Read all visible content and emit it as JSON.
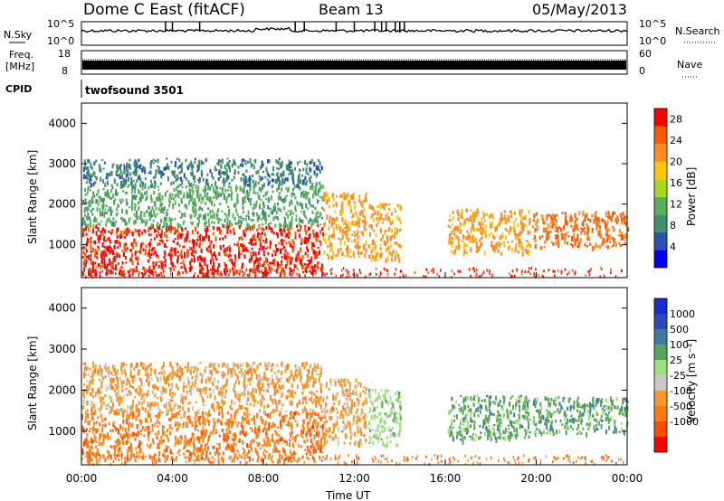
{
  "header": {
    "station": "Dome C East (fitACF)",
    "beam": "Beam 13",
    "date": "05/May/2013"
  },
  "nsky_panel": {
    "left_label": "N.Sky",
    "left_ticks": [
      "10^5",
      "10^0"
    ],
    "right_label": "N.Search",
    "right_ticks": [
      "10^5",
      "10^0"
    ]
  },
  "freq_panel": {
    "left_label_line1": "Freq.",
    "left_label_line2": "[MHz]",
    "left_ticks": [
      "18",
      "8"
    ],
    "right_label": "Nave",
    "right_ticks": [
      "60",
      "0"
    ]
  },
  "cpid": {
    "label": "CPID",
    "value": "twofsound 3501"
  },
  "time_axis": {
    "ticks": [
      "00:00",
      "04:00",
      "08:00",
      "12:00",
      "16:00",
      "20:00",
      "00:00"
    ],
    "label": "Time UT"
  },
  "colors": {
    "power_scale": [
      "#0000ff",
      "#2a50b4",
      "#3f8f6a",
      "#5ab05a",
      "#a8d81e",
      "#ffc800",
      "#ff8c1e",
      "#ff5a00",
      "#ff0000"
    ],
    "velocity_scale": [
      "#ff0000",
      "#ff4a00",
      "#ff7a10",
      "#f59a2a",
      "#c8c8c8",
      "#9be07a",
      "#5aa45a",
      "#3c7aa0",
      "#2a4ab4",
      "#1c2ad2"
    ]
  },
  "chart_data": [
    {
      "type": "heatmap",
      "name": "power",
      "ylabel": "Slant Range [km]",
      "y_ticks": [
        1000,
        2000,
        3000,
        4000
      ],
      "ylim": [
        180,
        4500
      ],
      "xlim_hours": [
        0,
        24
      ],
      "colorbar_label": "Power [dB]",
      "colorbar_ticks": [
        4,
        8,
        12,
        16,
        20,
        24,
        28
      ],
      "clim": [
        0,
        30
      ],
      "regions": [
        {
          "t0": 0.0,
          "t1": 10.6,
          "r0": 300,
          "r1": 1500,
          "level": 27
        },
        {
          "t0": 0.0,
          "t1": 10.6,
          "r0": 1500,
          "r1": 2500,
          "level": 12
        },
        {
          "t0": 0.0,
          "t1": 10.6,
          "r0": 2500,
          "r1": 3150,
          "level": 9
        },
        {
          "t0": 10.6,
          "t1": 12.5,
          "r0": 700,
          "r1": 2300,
          "level": 22
        },
        {
          "t0": 12.6,
          "t1": 14.0,
          "r0": 650,
          "r1": 2050,
          "level": 21
        },
        {
          "t0": 16.1,
          "t1": 19.7,
          "r0": 800,
          "r1": 1900,
          "level": 22
        },
        {
          "t0": 19.8,
          "t1": 24.0,
          "r0": 950,
          "r1": 1850,
          "level": 24
        }
      ]
    },
    {
      "type": "heatmap",
      "name": "velocity",
      "ylabel": "Slant Range [km]",
      "y_ticks": [
        1000,
        2000,
        3000,
        4000
      ],
      "ylim": [
        180,
        4500
      ],
      "xlim_hours": [
        0,
        24
      ],
      "colorbar_label": "Velocity [m s⁻¹]",
      "colorbar_ticks": [
        "1000",
        "500",
        "100",
        "25",
        "-25",
        "-100",
        "-500",
        "-1000"
      ],
      "regions": [
        {
          "t0": 0.0,
          "t1": 10.6,
          "r0": 300,
          "r1": 1500,
          "level": -150
        },
        {
          "t0": 0.0,
          "t1": 10.6,
          "r0": 1500,
          "r1": 2700,
          "level": -80
        },
        {
          "t0": 10.6,
          "t1": 12.5,
          "r0": 700,
          "r1": 2300,
          "level": -60
        },
        {
          "t0": 12.6,
          "t1": 14.0,
          "r0": 650,
          "r1": 2050,
          "level": 60
        },
        {
          "t0": 16.1,
          "t1": 19.7,
          "r0": 800,
          "r1": 1900,
          "level": 120
        },
        {
          "t0": 19.8,
          "t1": 24.0,
          "r0": 950,
          "r1": 1850,
          "level": 150
        }
      ]
    }
  ]
}
